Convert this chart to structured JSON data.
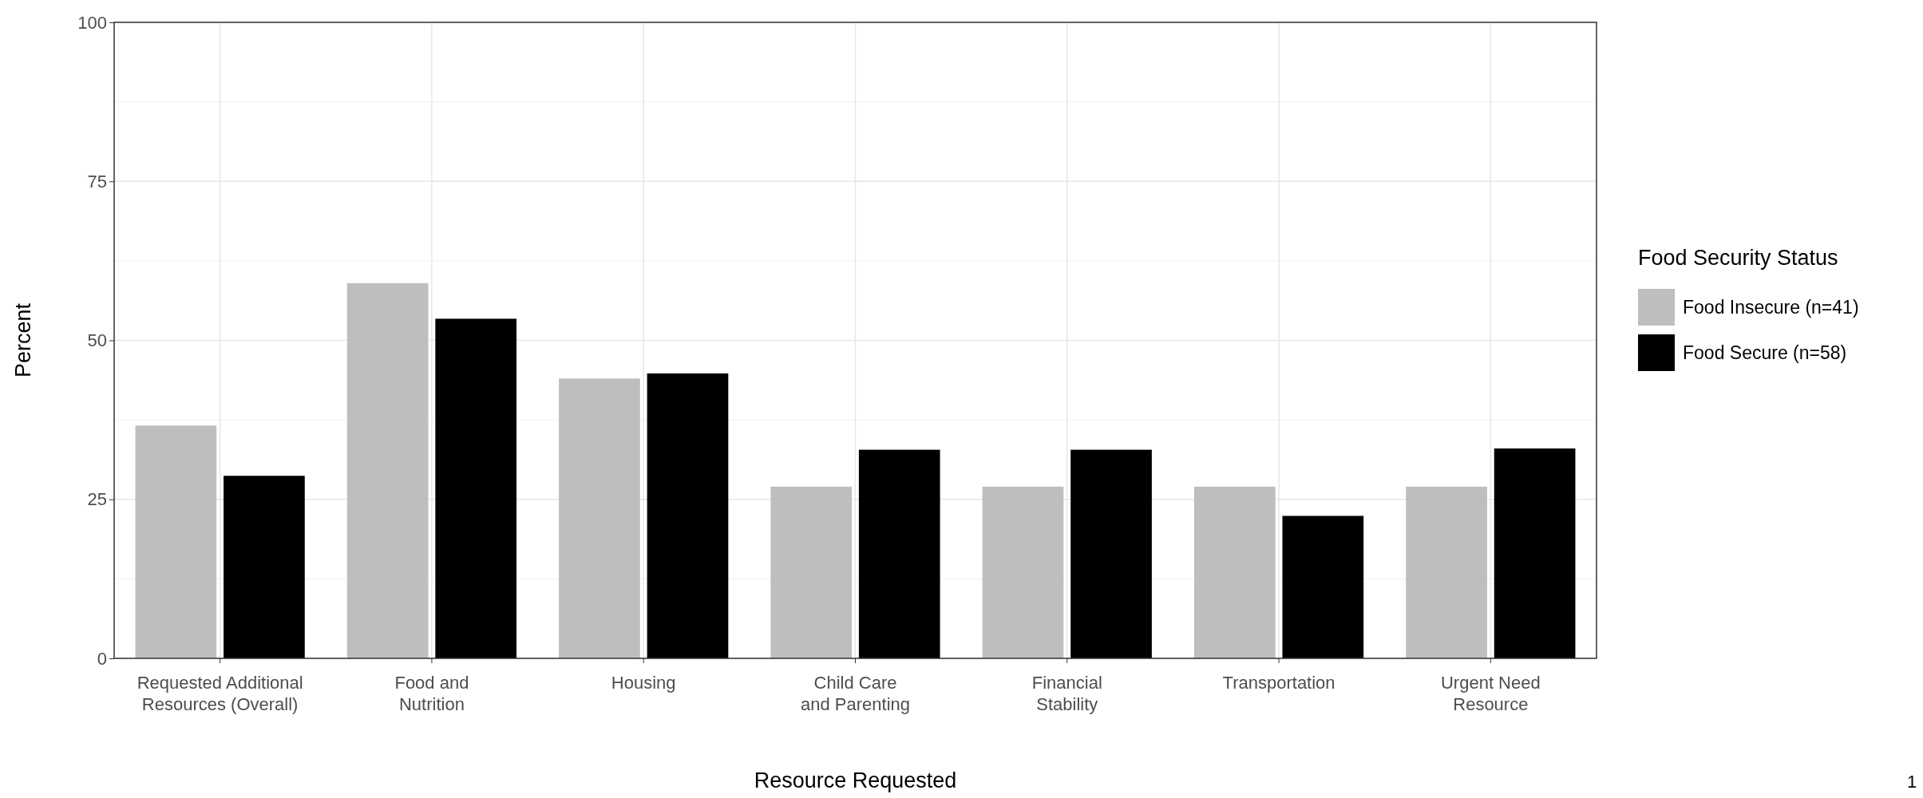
{
  "chart_data": {
    "type": "bar",
    "xlabel": "Resource Requested",
    "ylabel": "Percent",
    "legend_title": "Food Security Status",
    "categories": [
      "Requested Additional\nResources (Overall)",
      "Food and\nNutrition",
      "Housing",
      "Child Care\nand Parenting",
      "Financial\nStability",
      "Transportation",
      "Urgent Need\nResource"
    ],
    "series": [
      {
        "name": "Food Insecure (n=41)",
        "color": "#bebebe",
        "values": [
          36.6,
          59,
          44,
          27,
          27,
          27,
          27
        ]
      },
      {
        "name": "Food Secure (n=58)",
        "color": "#000000",
        "values": [
          28.7,
          53.4,
          44.8,
          32.8,
          32.8,
          22.4,
          33
        ]
      }
    ],
    "ylim": [
      0,
      100
    ],
    "yticks": [
      0,
      25,
      50,
      75,
      100
    ],
    "grid": true,
    "legend": "right",
    "annotations": [
      "1"
    ]
  }
}
